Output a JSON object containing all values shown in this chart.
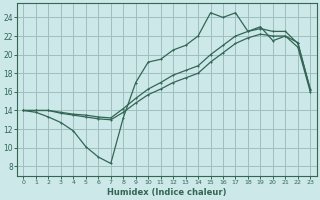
{
  "background_color": "#cce8e8",
  "grid_color": "#9fbfbf",
  "line_color": "#336655",
  "xlabel": "Humidex (Indice chaleur)",
  "xlim": [
    -0.5,
    23.5
  ],
  "ylim": [
    7,
    25.5
  ],
  "yticks": [
    8,
    10,
    12,
    14,
    16,
    18,
    20,
    22,
    24
  ],
  "xticks": [
    0,
    1,
    2,
    3,
    4,
    5,
    6,
    7,
    8,
    9,
    10,
    11,
    12,
    13,
    14,
    15,
    16,
    17,
    18,
    19,
    20,
    21,
    22,
    23
  ],
  "curve1_x": [
    0,
    1,
    2,
    3,
    4,
    5,
    6,
    7,
    8,
    9,
    10,
    11,
    12,
    13,
    14,
    15,
    16,
    17,
    18,
    19,
    20,
    21,
    22,
    23
  ],
  "curve1_y": [
    14.0,
    13.8,
    13.3,
    12.7,
    11.8,
    10.1,
    9.0,
    8.3,
    13.2,
    17.0,
    19.2,
    19.5,
    20.5,
    21.0,
    22.0,
    24.5,
    24.0,
    24.5,
    22.5,
    23.0,
    21.5,
    22.0,
    21.3,
    16.2
  ],
  "curve2_x": [
    0,
    1,
    2,
    3,
    4,
    5,
    6,
    7,
    8,
    9,
    10,
    11,
    12,
    13,
    14,
    15,
    16,
    17,
    18,
    19,
    20,
    21,
    22,
    23
  ],
  "curve2_y": [
    14.0,
    14.0,
    14.0,
    13.8,
    13.6,
    13.5,
    13.3,
    13.2,
    14.2,
    15.3,
    16.3,
    17.0,
    17.8,
    18.3,
    18.8,
    20.0,
    21.0,
    22.0,
    22.5,
    22.8,
    22.5,
    22.5,
    21.2,
    16.3
  ],
  "curve3_x": [
    0,
    1,
    2,
    3,
    4,
    5,
    6,
    7,
    8,
    9,
    10,
    11,
    12,
    13,
    14,
    15,
    16,
    17,
    18,
    19,
    20,
    21,
    22,
    23
  ],
  "curve3_y": [
    14.0,
    14.0,
    14.0,
    13.7,
    13.5,
    13.3,
    13.1,
    13.0,
    13.8,
    14.8,
    15.7,
    16.3,
    17.0,
    17.5,
    18.0,
    19.2,
    20.2,
    21.2,
    21.8,
    22.2,
    22.0,
    22.0,
    20.8,
    16.0
  ]
}
